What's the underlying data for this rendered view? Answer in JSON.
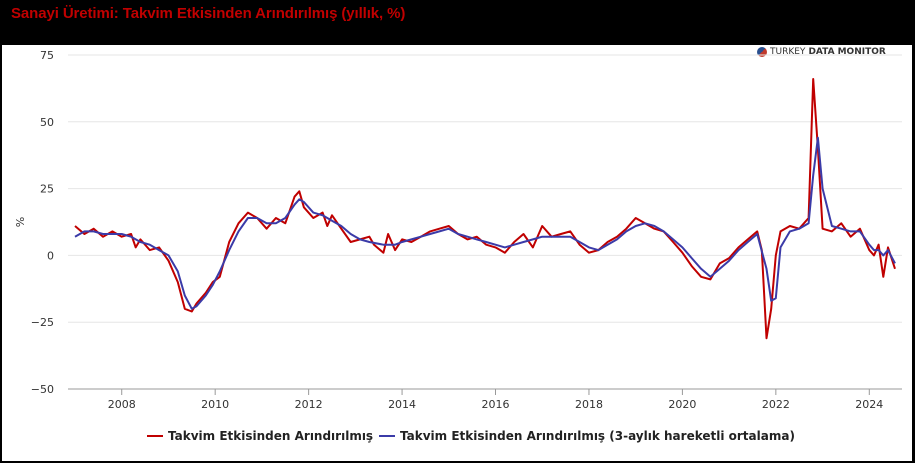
{
  "header": {
    "title": "Sanayi Üretimi: Takvim Etkisinden Arındırılmış (yıllık, %)"
  },
  "brand": {
    "prefix": "TURKEY",
    "middle": "DATA",
    "suffix": "MONITOR"
  },
  "colors": {
    "series1": "#c00000",
    "series2": "#3b3ba8",
    "grid": "#e6e6e6"
  },
  "chart_data": {
    "type": "line",
    "title": "",
    "ylabel": "%",
    "xlabel": "",
    "ylim": [
      -50,
      75
    ],
    "xlim": [
      2006.85,
      2024.7
    ],
    "yticks": [
      75,
      50,
      25,
      0,
      -25,
      -50
    ],
    "ytick_labels": [
      "75",
      "50",
      "25",
      "0",
      "−25",
      "−50"
    ],
    "xticks": [
      2008,
      2010,
      2012,
      2014,
      2016,
      2018,
      2020,
      2022,
      2024
    ],
    "xtick_labels": [
      "2008",
      "2010",
      "2012",
      "2014",
      "2016",
      "2018",
      "2020",
      "2022",
      "2024"
    ],
    "grid": true,
    "legend_position": "bottom-center",
    "series": [
      {
        "name": "Takvim Etkisinden Arındırılmış",
        "color": "#c00000",
        "points": [
          [
            2007.0,
            11
          ],
          [
            2007.2,
            8
          ],
          [
            2007.4,
            10
          ],
          [
            2007.6,
            7
          ],
          [
            2007.8,
            9
          ],
          [
            2008.0,
            7
          ],
          [
            2008.2,
            8
          ],
          [
            2008.3,
            3
          ],
          [
            2008.4,
            6
          ],
          [
            2008.6,
            2
          ],
          [
            2008.8,
            3
          ],
          [
            2009.0,
            -2
          ],
          [
            2009.2,
            -10
          ],
          [
            2009.35,
            -20
          ],
          [
            2009.5,
            -21
          ],
          [
            2009.6,
            -18
          ],
          [
            2009.8,
            -14
          ],
          [
            2009.95,
            -10
          ],
          [
            2010.1,
            -8
          ],
          [
            2010.3,
            5
          ],
          [
            2010.5,
            12
          ],
          [
            2010.7,
            16
          ],
          [
            2010.9,
            14
          ],
          [
            2011.1,
            10
          ],
          [
            2011.3,
            14
          ],
          [
            2011.5,
            12
          ],
          [
            2011.7,
            22
          ],
          [
            2011.8,
            24
          ],
          [
            2011.9,
            18
          ],
          [
            2012.1,
            14
          ],
          [
            2012.3,
            16
          ],
          [
            2012.4,
            11
          ],
          [
            2012.5,
            15
          ],
          [
            2012.7,
            10
          ],
          [
            2012.9,
            5
          ],
          [
            2013.1,
            6
          ],
          [
            2013.3,
            7
          ],
          [
            2013.4,
            4
          ],
          [
            2013.6,
            1
          ],
          [
            2013.7,
            8
          ],
          [
            2013.85,
            2
          ],
          [
            2014.0,
            6
          ],
          [
            2014.2,
            5
          ],
          [
            2014.4,
            7
          ],
          [
            2014.6,
            9
          ],
          [
            2014.8,
            10
          ],
          [
            2015.0,
            11
          ],
          [
            2015.2,
            8
          ],
          [
            2015.4,
            6
          ],
          [
            2015.6,
            7
          ],
          [
            2015.8,
            4
          ],
          [
            2016.0,
            3
          ],
          [
            2016.2,
            1
          ],
          [
            2016.4,
            5
          ],
          [
            2016.6,
            8
          ],
          [
            2016.8,
            3
          ],
          [
            2017.0,
            11
          ],
          [
            2017.2,
            7
          ],
          [
            2017.4,
            8
          ],
          [
            2017.6,
            9
          ],
          [
            2017.8,
            4
          ],
          [
            2018.0,
            1
          ],
          [
            2018.2,
            2
          ],
          [
            2018.4,
            5
          ],
          [
            2018.6,
            7
          ],
          [
            2018.8,
            10
          ],
          [
            2019.0,
            14
          ],
          [
            2019.2,
            12
          ],
          [
            2019.4,
            10
          ],
          [
            2019.6,
            9
          ],
          [
            2019.8,
            5
          ],
          [
            2020.0,
            1
          ],
          [
            2020.2,
            -4
          ],
          [
            2020.4,
            -8
          ],
          [
            2020.6,
            -9
          ],
          [
            2020.8,
            -3
          ],
          [
            2021.0,
            -1
          ],
          [
            2021.2,
            3
          ],
          [
            2021.4,
            6
          ],
          [
            2021.6,
            9
          ],
          [
            2021.7,
            2
          ],
          [
            2021.8,
            -31
          ],
          [
            2021.9,
            -20
          ],
          [
            2022.0,
            0
          ],
          [
            2022.1,
            9
          ],
          [
            2022.3,
            11
          ],
          [
            2022.5,
            10
          ],
          [
            2022.7,
            14
          ],
          [
            2022.8,
            66
          ],
          [
            2022.9,
            40
          ],
          [
            2023.0,
            10
          ],
          [
            2023.2,
            9
          ],
          [
            2023.4,
            12
          ],
          [
            2023.6,
            7
          ],
          [
            2023.8,
            10
          ],
          [
            2024.0,
            2
          ],
          [
            2024.1,
            0
          ],
          [
            2024.2,
            4
          ],
          [
            2024.3,
            -8
          ],
          [
            2024.4,
            3
          ],
          [
            2024.55,
            -5
          ]
        ]
      },
      {
        "name": "Takvim Etkisinden Arındırılmış (3-aylık hareketli ortalama)",
        "color": "#3b3ba8",
        "points": [
          [
            2007.0,
            7
          ],
          [
            2007.2,
            9
          ],
          [
            2007.4,
            9
          ],
          [
            2007.6,
            8
          ],
          [
            2007.8,
            8
          ],
          [
            2008.0,
            8
          ],
          [
            2008.2,
            7
          ],
          [
            2008.4,
            5
          ],
          [
            2008.6,
            4
          ],
          [
            2008.8,
            2
          ],
          [
            2009.0,
            0
          ],
          [
            2009.2,
            -6
          ],
          [
            2009.35,
            -15
          ],
          [
            2009.5,
            -20
          ],
          [
            2009.6,
            -19
          ],
          [
            2009.8,
            -15
          ],
          [
            2009.95,
            -11
          ],
          [
            2010.1,
            -6
          ],
          [
            2010.3,
            2
          ],
          [
            2010.5,
            9
          ],
          [
            2010.7,
            14
          ],
          [
            2010.9,
            14
          ],
          [
            2011.1,
            12
          ],
          [
            2011.3,
            12
          ],
          [
            2011.5,
            14
          ],
          [
            2011.7,
            19
          ],
          [
            2011.8,
            21
          ],
          [
            2011.9,
            20
          ],
          [
            2012.1,
            16
          ],
          [
            2012.3,
            15
          ],
          [
            2012.5,
            13
          ],
          [
            2012.7,
            11
          ],
          [
            2012.9,
            8
          ],
          [
            2013.1,
            6
          ],
          [
            2013.3,
            5
          ],
          [
            2013.6,
            4
          ],
          [
            2013.85,
            4
          ],
          [
            2014.0,
            5
          ],
          [
            2014.2,
            6
          ],
          [
            2014.4,
            7
          ],
          [
            2014.6,
            8
          ],
          [
            2014.8,
            9
          ],
          [
            2015.0,
            10
          ],
          [
            2015.2,
            8
          ],
          [
            2015.4,
            7
          ],
          [
            2015.6,
            6
          ],
          [
            2015.8,
            5
          ],
          [
            2016.0,
            4
          ],
          [
            2016.2,
            3
          ],
          [
            2016.4,
            4
          ],
          [
            2016.6,
            5
          ],
          [
            2016.8,
            6
          ],
          [
            2017.0,
            7
          ],
          [
            2017.2,
            7
          ],
          [
            2017.4,
            7
          ],
          [
            2017.6,
            7
          ],
          [
            2017.8,
            5
          ],
          [
            2018.0,
            3
          ],
          [
            2018.2,
            2
          ],
          [
            2018.4,
            4
          ],
          [
            2018.6,
            6
          ],
          [
            2018.8,
            9
          ],
          [
            2019.0,
            11
          ],
          [
            2019.2,
            12
          ],
          [
            2019.4,
            11
          ],
          [
            2019.6,
            9
          ],
          [
            2019.8,
            6
          ],
          [
            2020.0,
            3
          ],
          [
            2020.2,
            -1
          ],
          [
            2020.4,
            -5
          ],
          [
            2020.6,
            -8
          ],
          [
            2020.8,
            -5
          ],
          [
            2021.0,
            -2
          ],
          [
            2021.2,
            2
          ],
          [
            2021.4,
            5
          ],
          [
            2021.6,
            8
          ],
          [
            2021.8,
            -5
          ],
          [
            2021.9,
            -17
          ],
          [
            2022.0,
            -16
          ],
          [
            2022.1,
            3
          ],
          [
            2022.3,
            9
          ],
          [
            2022.5,
            10
          ],
          [
            2022.7,
            12
          ],
          [
            2022.8,
            30
          ],
          [
            2022.9,
            44
          ],
          [
            2023.0,
            25
          ],
          [
            2023.2,
            11
          ],
          [
            2023.4,
            10
          ],
          [
            2023.6,
            9
          ],
          [
            2023.8,
            9
          ],
          [
            2024.0,
            4
          ],
          [
            2024.1,
            2
          ],
          [
            2024.2,
            2
          ],
          [
            2024.3,
            0
          ],
          [
            2024.4,
            2
          ],
          [
            2024.55,
            -3
          ]
        ]
      }
    ]
  }
}
